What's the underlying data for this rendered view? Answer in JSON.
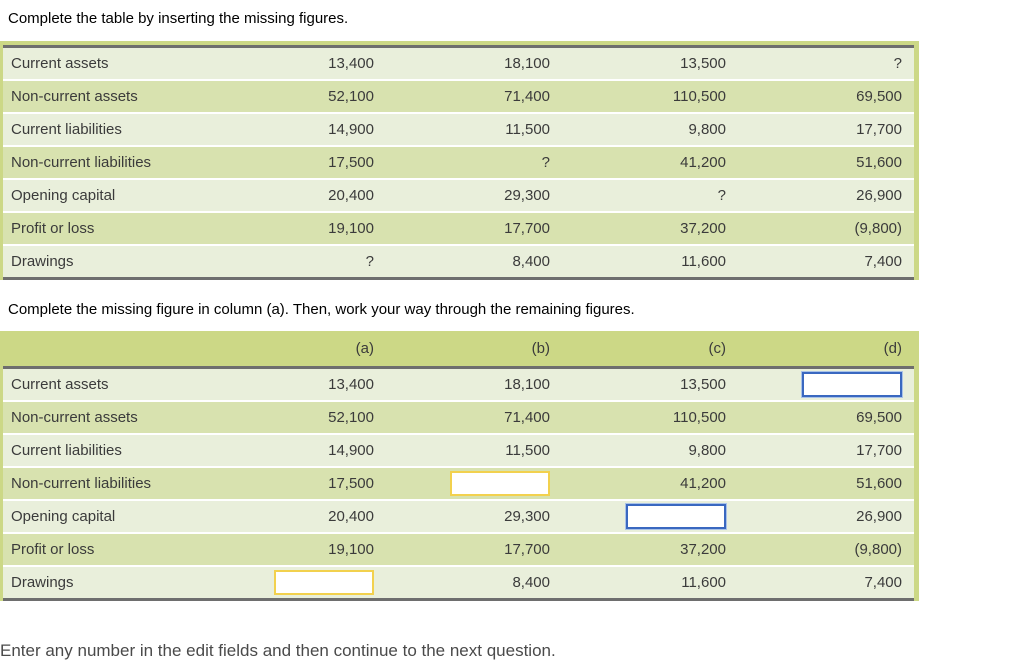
{
  "instruction_top": "Complete the table by inserting the missing figures.",
  "instruction_middle": "Complete the missing figure in column (a). Then, work your way through the remaining figures.",
  "footer_text": "Enter any number in the edit fields and then continue to the next question.",
  "colors": {
    "band": "#ccd886",
    "row_light": "#e9efdb",
    "row_dark": "#d8e2af",
    "divider": "#6e6e6e",
    "input_yellow": "#f2d14e",
    "input_blue": "#3a68c0",
    "input_halo": "#a9c2e8"
  },
  "table1": {
    "rows": [
      {
        "label": "Current assets",
        "values": [
          "13,400",
          "18,100",
          "13,500",
          "?"
        ]
      },
      {
        "label": "Non-current assets",
        "values": [
          "52,100",
          "71,400",
          "110,500",
          "69,500"
        ]
      },
      {
        "label": "Current liabilities",
        "values": [
          "14,900",
          "11,500",
          "9,800",
          "17,700"
        ]
      },
      {
        "label": "Non-current liabilities",
        "values": [
          "17,500",
          "?",
          "41,200",
          "51,600"
        ]
      },
      {
        "label": "Opening capital",
        "values": [
          "20,400",
          "29,300",
          "?",
          "26,900"
        ]
      },
      {
        "label": "Profit or loss",
        "values": [
          "19,100",
          "17,700",
          "37,200",
          "(9,800)"
        ]
      },
      {
        "label": "Drawings",
        "values": [
          "?",
          "8,400",
          "11,600",
          "7,400"
        ]
      }
    ]
  },
  "table2": {
    "columns": [
      "(a)",
      "(b)",
      "(c)",
      "(d)"
    ],
    "rows": [
      {
        "label": "Current assets",
        "values": [
          "13,400",
          "18,100",
          "13,500",
          ""
        ],
        "input_col": "d",
        "input_style": "blue"
      },
      {
        "label": "Non-current assets",
        "values": [
          "52,100",
          "71,400",
          "110,500",
          "69,500"
        ]
      },
      {
        "label": "Current liabilities",
        "values": [
          "14,900",
          "11,500",
          "9,800",
          "17,700"
        ]
      },
      {
        "label": "Non-current liabilities",
        "values": [
          "17,500",
          "",
          "41,200",
          "51,600"
        ],
        "input_col": "b",
        "input_style": "yellow"
      },
      {
        "label": "Opening capital",
        "values": [
          "20,400",
          "29,300",
          "",
          "26,900"
        ],
        "input_col": "c",
        "input_style": "blue"
      },
      {
        "label": "Profit or loss",
        "values": [
          "19,100",
          "17,700",
          "37,200",
          "(9,800)"
        ]
      },
      {
        "label": "Drawings",
        "values": [
          "",
          "8,400",
          "11,600",
          "7,400"
        ],
        "input_col": "a",
        "input_style": "yellow"
      }
    ],
    "input_values": {
      "a": "",
      "b": "",
      "c": "",
      "d": ""
    }
  }
}
